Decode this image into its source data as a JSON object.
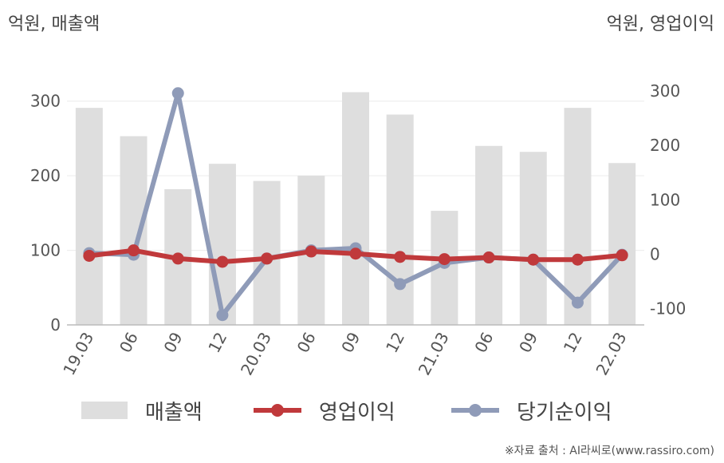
{
  "units": {
    "left": "억원, 매출액",
    "right": "억원, 영업이익"
  },
  "chart_data": {
    "type": "bar+line",
    "categories": [
      "19.03",
      "06",
      "09",
      "12",
      "20.03",
      "06",
      "09",
      "12",
      "21.03",
      "06",
      "09",
      "12",
      "22.03"
    ],
    "series": [
      {
        "name": "매출액",
        "type": "bar",
        "axis": "left",
        "color": "#dedede",
        "values": [
          291,
          253,
          182,
          216,
          193,
          200,
          312,
          282,
          153,
          240,
          232,
          291,
          217
        ]
      },
      {
        "name": "영업이익",
        "type": "line",
        "axis": "right",
        "color": "#c0393b",
        "values": [
          -3,
          7,
          -8,
          -14,
          -8,
          5,
          1,
          -5,
          -9,
          -6,
          -10,
          -10,
          -2
        ]
      },
      {
        "name": "당기순이익",
        "type": "line",
        "axis": "right",
        "color": "#8f9bb8",
        "values": [
          2,
          -1,
          296,
          -112,
          -8,
          7,
          11,
          -55,
          -16,
          -6,
          -10,
          -89,
          -1
        ]
      }
    ],
    "y_left": {
      "min": 0,
      "max": 350,
      "ticks": [
        0,
        100,
        200,
        300
      ]
    },
    "y_right": {
      "min": -130,
      "max": 350,
      "ticks": [
        -100,
        0,
        100,
        200,
        300
      ]
    },
    "grid": true,
    "legend": "bottom"
  },
  "source": "※자료 출처 : AI라씨로(www.rassiro.com)"
}
